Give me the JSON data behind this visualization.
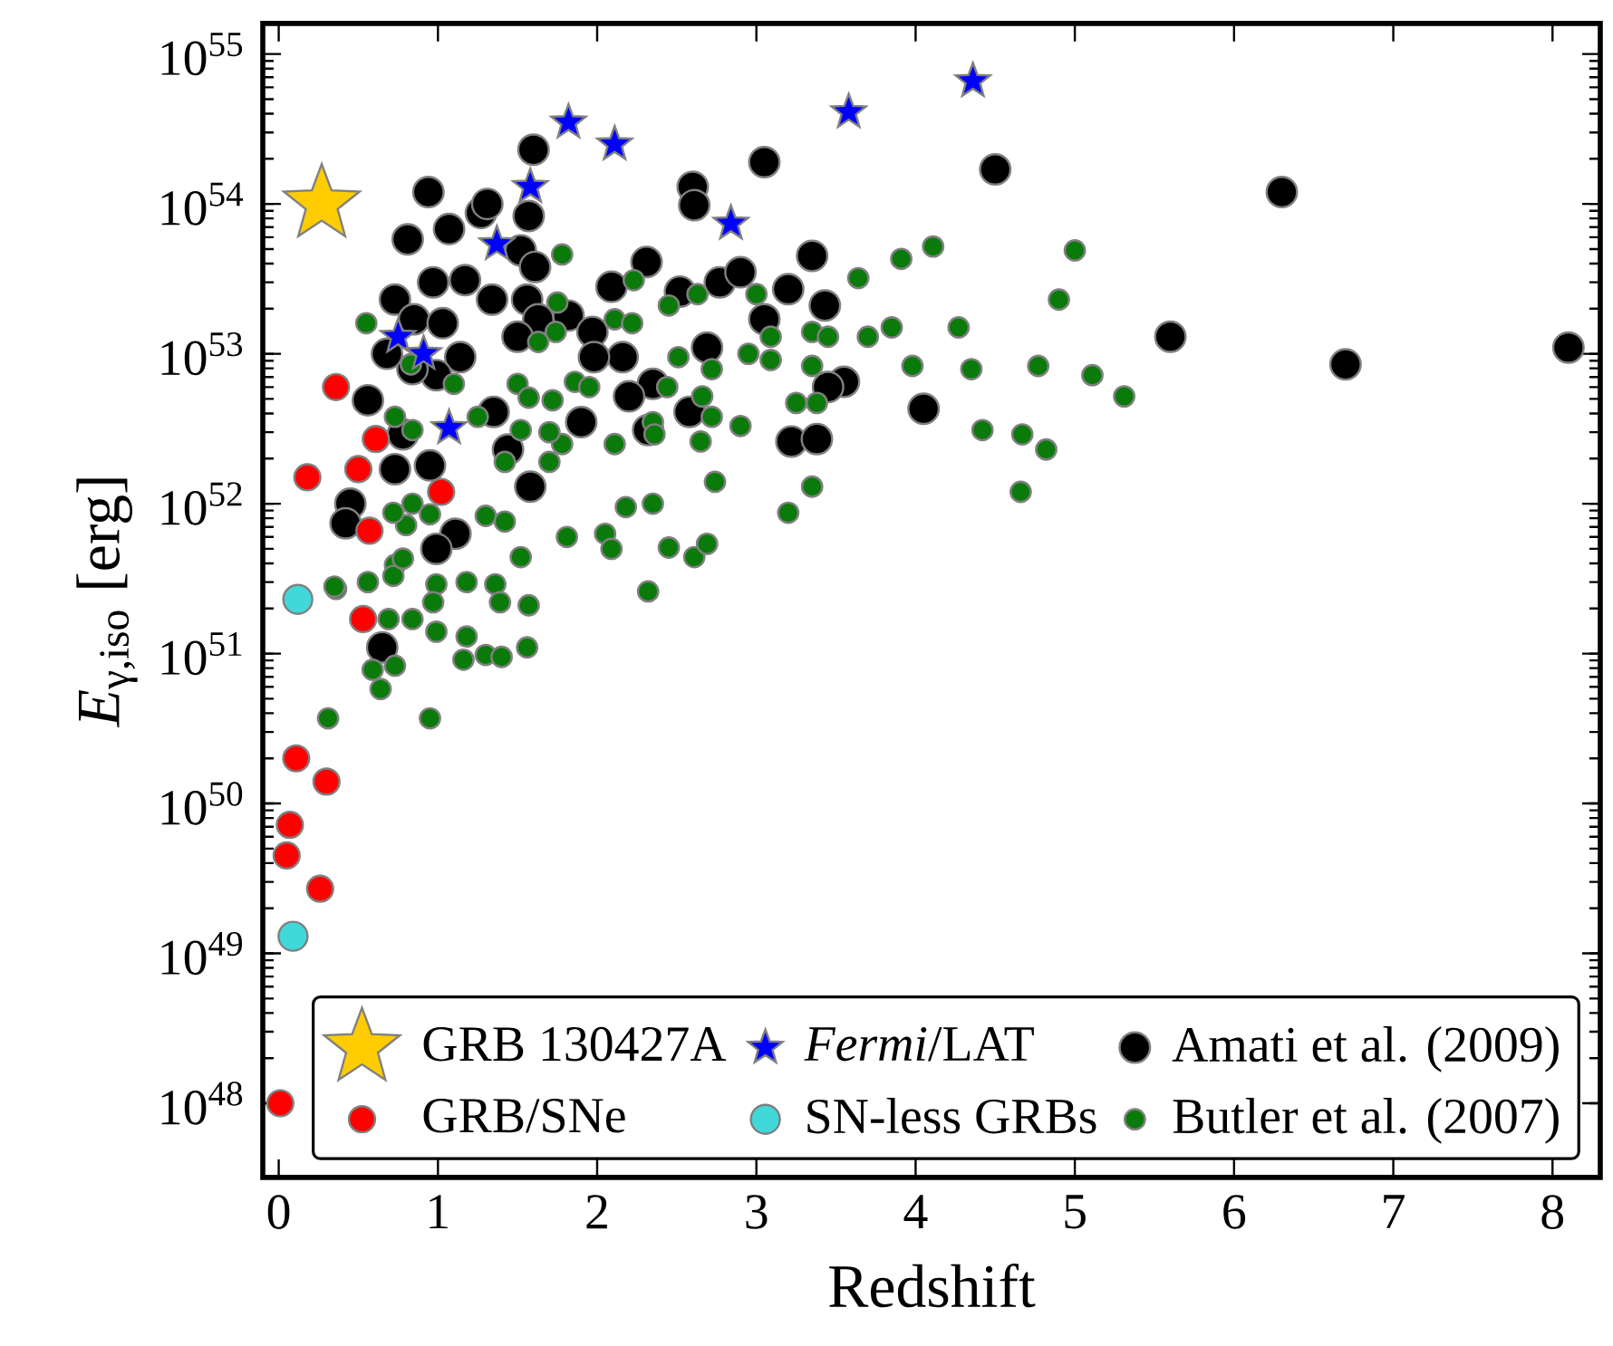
{
  "chart_data": {
    "type": "scatter",
    "xlabel": "Redshift",
    "ylabel": "*E*$_{γ,iso}$ [erg]",
    "log": "y",
    "legend": "bottom right",
    "xlim": [
      -0.1,
      8.3
    ],
    "ylim": [
      3.2e+47,
      1.6e+55
    ],
    "xticks": [
      0,
      1,
      2,
      3,
      4,
      5,
      6,
      7,
      8
    ],
    "yticks": [
      {
        "value": 1e+48,
        "label": "10$^{48}$"
      },
      {
        "value": 1e+49,
        "label": "10$^{49}$"
      },
      {
        "value": 1e+50,
        "label": "10$^{50}$"
      },
      {
        "value": 1e+51,
        "label": "10$^{51}$"
      },
      {
        "value": 1e+52,
        "label": "10$^{52}$"
      },
      {
        "value": 1e+53,
        "label": "10$^{53}$"
      },
      {
        "value": 1e+54,
        "label": "10$^{54}$"
      },
      {
        "value": 1e+55,
        "label": "10$^{55}$"
      }
    ],
    "series": [
      {
        "name": "GRB 130427A",
        "color": "#ffcc00",
        "marker": "star",
        "x": [
          0.27
        ],
        "values": [
          1e+54
        ]
      },
      {
        "name": "GRB/SNe",
        "color": "#ff0000",
        "marker": "circle",
        "x": [
          0.36,
          0.18,
          0.61,
          0.5,
          1.02,
          0.57,
          0.53,
          0.11,
          0.3,
          0.07,
          0.05,
          0.26,
          0.01
        ],
        "values": [
          6e+52,
          1.5e+52,
          2.7e+52,
          1.7e+52,
          1.2e+52,
          6.6e+51,
          1.7e+51,
          2e+50,
          1.4e+50,
          7.2e+49,
          4.5e+49,
          2.7e+49,
          1e+48
        ]
      },
      {
        "name": "*Fermi*/LAT",
        "color": "#0000ff",
        "marker": "star",
        "x": [
          1.82,
          2.11,
          1.58,
          1.37,
          0.75,
          0.91,
          1.07,
          2.84,
          3.58,
          4.36
        ],
        "values": [
          3.5e+54,
          2.5e+54,
          1.3e+54,
          5.4e+53,
          1.3e+53,
          1e+53,
          3.2e+52,
          7.4e+53,
          4.1e+54,
          6.6e+54
        ]
      },
      {
        "name": "SN-less GRBs",
        "color": "#40d8d8",
        "marker": "circle",
        "x": [
          0.12,
          0.09
        ],
        "values": [
          2.3e+51,
          1.3e+49
        ]
      },
      {
        "name": "Amati et al. (2009)",
        "color": "#000000",
        "marker": "circle",
        "x": [
          1.6,
          0.94,
          0.81,
          1.07,
          1.27,
          1.31,
          1.57,
          1.52,
          1.61,
          0.73,
          0.97,
          1.17,
          1.34,
          1.56,
          1.63,
          1.82,
          0.85,
          1.03,
          1.5,
          1.97,
          2.09,
          2.31,
          2.52,
          2.77,
          2.9,
          2.6,
          2.61,
          3.05,
          3.2,
          3.35,
          3.43,
          3.05,
          3.55,
          3.45,
          4.05,
          3.22,
          3.38,
          2.69,
          2.58,
          2.35,
          2.2,
          2.16,
          1.98,
          1.9,
          1.58,
          1.14,
          0.99,
          0.84,
          0.68,
          0.56,
          1.35,
          1.44,
          0.95,
          0.73,
          0.45,
          0.42,
          1.11,
          0.99,
          0.78,
          2.32,
          4.5,
          6.3,
          5.6,
          6.7,
          8.1,
          0.65
        ],
        "values": [
          2.3e+54,
          1.2e+54,
          5.8e+53,
          6.8e+53,
          8.7e+53,
          1e+54,
          8.3e+53,
          4.9e+53,
          3.8e+53,
          2.3e+53,
          3e+53,
          3.1e+53,
          2.3e+53,
          2.3e+53,
          1.7e+53,
          1.8e+53,
          1.7e+53,
          1.6e+53,
          1.3e+53,
          1.4e+53,
          2.8e+53,
          4.1e+53,
          2.6e+53,
          3e+53,
          3.5e+53,
          1.3e+54,
          9.8e+53,
          1.9e+54,
          2.7e+53,
          4.5e+53,
          2.1e+53,
          1.7e+53,
          6.5e+52,
          6e+52,
          4.3e+52,
          2.6e+52,
          2.7e+52,
          1.1e+53,
          4.1e+52,
          6.3e+52,
          5.2e+52,
          9.5e+52,
          9.5e+52,
          3.5e+52,
          1.3e+52,
          9.5e+52,
          7.2e+52,
          7.9e+52,
          1e+53,
          4.9e+52,
          4.1e+52,
          2.3e+52,
          1.8e+52,
          1.7e+52,
          1e+52,
          7.4e+51,
          6.3e+51,
          5e+51,
          2.9e+52,
          3.1e+52,
          1.7e+54,
          1.2e+54,
          1.3e+53,
          8.5e+52,
          1.1e+53,
          1.1e+51
        ]
      },
      {
        "name": "Butler et al. (2007)",
        "color": "#0a7a0a",
        "marker": "circle",
        "x": [
          1.78,
          2.23,
          2.45,
          2.63,
          3.0,
          3.09,
          2.95,
          3.09,
          3.35,
          3.45,
          3.64,
          3.7,
          3.85,
          3.98,
          3.91,
          4.11,
          3.35,
          3.25,
          3.38,
          3.35,
          3.2,
          2.9,
          2.74,
          2.65,
          2.72,
          2.66,
          2.72,
          2.51,
          2.44,
          2.35,
          2.36,
          2.11,
          2.35,
          2.18,
          2.45,
          2.61,
          2.69,
          2.05,
          1.81,
          1.52,
          1.7,
          1.78,
          1.7,
          1.72,
          1.86,
          1.95,
          2.11,
          2.22,
          1.75,
          1.74,
          1.63,
          1.5,
          1.57,
          1.52,
          1.42,
          1.25,
          1.1,
          0.83,
          0.55,
          0.73,
          0.84,
          0.84,
          0.95,
          1.3,
          1.42,
          0.8,
          0.72,
          0.36,
          0.56,
          0.73,
          5.0,
          4.9,
          4.27,
          4.35,
          4.77,
          5.11,
          5.31,
          4.42,
          4.67,
          4.82,
          4.66,
          0.35,
          0.72,
          0.78,
          0.99,
          1.18,
          1.36,
          1.39,
          1.57,
          0.97,
          0.69,
          0.84,
          0.99,
          1.18,
          1.16,
          1.3,
          1.4,
          1.56,
          0.59,
          0.73,
          0.64,
          0.31,
          0.95,
          2.32,
          2.09
        ],
        "values": [
          4.6e+53,
          3.1e+53,
          2.1e+53,
          2.5e+53,
          2.5e+53,
          1.3e+53,
          1e+53,
          9.1e+52,
          1.4e+53,
          1.3e+53,
          3.2e+53,
          1.3e+53,
          1.5e+53,
          8.3e+52,
          4.3e+53,
          5.2e+53,
          8.3e+52,
          4.7e+52,
          4.7e+52,
          1.3e+52,
          8.7e+51,
          3.3e+52,
          1.4e+52,
          2.6e+52,
          3.8e+52,
          5.2e+52,
          7.9e+52,
          9.5e+52,
          6e+52,
          3.5e+52,
          2.9e+52,
          2.5e+52,
          1e+52,
          9.5e+51,
          5.1e+51,
          4.4e+51,
          5.4e+51,
          6.3e+51,
          6e+51,
          4.4e+51,
          1.9e+52,
          2.5e+52,
          3e+52,
          4.9e+52,
          6.5e+52,
          6e+52,
          1.7e+53,
          1.6e+53,
          2.2e+53,
          1.4e+53,
          1.2e+53,
          6.3e+52,
          5.1e+52,
          3.1e+52,
          1.9e+52,
          3.8e+52,
          6.3e+52,
          8.5e+52,
          1.6e+53,
          3.8e+52,
          3.1e+52,
          1e+52,
          8.5e+51,
          8.3e+51,
          7.6e+51,
          7.2e+51,
          8.7e+51,
          2.7e+51,
          3e+51,
          3.9e+51,
          4.9e+53,
          2.3e+53,
          1.5e+53,
          7.9e+52,
          8.3e+52,
          7.2e+52,
          5.2e+52,
          3.1e+52,
          2.9e+52,
          2.3e+52,
          1.2e+52,
          2.8e+51,
          3.3e+51,
          4.3e+51,
          2.9e+51,
          3e+51,
          2.9e+51,
          2.2e+51,
          2.1e+51,
          2.2e+51,
          1.7e+51,
          1.7e+51,
          1.4e+51,
          1.3e+51,
          9.1e+50,
          9.8e+50,
          9.5e+50,
          1.1e+51,
          7.8e+50,
          8.3e+50,
          5.8e+50,
          3.7e+50,
          3.7e+50,
          2.6e+51,
          5e+51
        ]
      }
    ]
  }
}
